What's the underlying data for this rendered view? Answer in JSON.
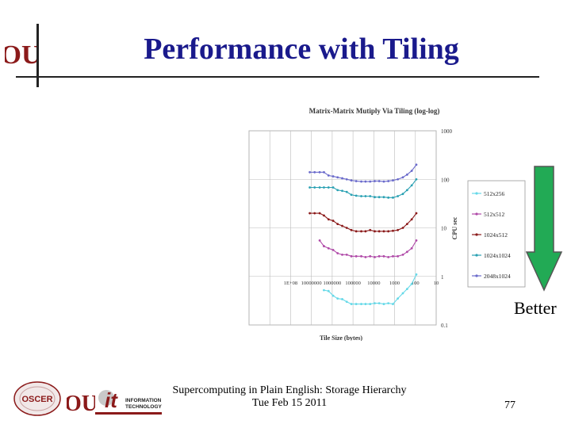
{
  "slide": {
    "title": "Performance with Tiling",
    "better_label": "Better",
    "footer_line1": "Supercomputing in Plain English: Storage Hierarchy",
    "footer_line2": "Tue Feb 15 2011",
    "page_number": "77"
  },
  "logos": {
    "ou": "OU",
    "oscer": "OSCER",
    "it": "it",
    "it_text1": "INFORMATION",
    "it_text2": "TECHNOLOGY"
  },
  "colors": {
    "title": "#1a1a8c",
    "arrow_fill": "#22aa55",
    "ou_crimson": "#8b1a1a"
  },
  "chart_data": {
    "type": "line",
    "title": "Matrix-Matrix Mutiply Via Tiling (log-log)",
    "xlabel": "Tile Size (bytes)",
    "ylabel": "CPU sec",
    "x_scale": "log",
    "y_scale": "log",
    "x_reversed": true,
    "xlim": [
      10,
      10000000000
    ],
    "ylim": [
      0.1,
      1000
    ],
    "x_ticks": [
      "1E+08",
      "10000000",
      "1000000",
      "100000",
      "10000",
      "1000",
      "100",
      "10"
    ],
    "y_ticks": [
      "1000",
      "100",
      "10",
      "1",
      "0.1"
    ],
    "grid": true,
    "legend_position": "right",
    "x": [
      20000000,
      12000000,
      7000000,
      4000000,
      2500000,
      1500000,
      900000,
      550000,
      330000,
      200000,
      120000,
      70000,
      40000,
      25000,
      15000,
      9000,
      5500,
      3300,
      2000,
      1200,
      700,
      400,
      250,
      150,
      90
    ],
    "series": [
      {
        "name": "512x256",
        "color": "#66d9e8",
        "values": [
          null,
          null,
          null,
          null,
          0.52,
          0.5,
          0.4,
          0.35,
          0.34,
          0.3,
          0.27,
          0.27,
          0.27,
          0.27,
          0.27,
          0.28,
          0.28,
          0.27,
          0.28,
          0.27,
          0.35,
          0.45,
          0.55,
          0.7,
          1.1
        ]
      },
      {
        "name": "512x512",
        "color": "#b04aa8",
        "values": [
          null,
          null,
          null,
          5.5,
          4.2,
          3.8,
          3.5,
          3.0,
          2.8,
          2.8,
          2.6,
          2.6,
          2.6,
          2.5,
          2.6,
          2.5,
          2.6,
          2.6,
          2.5,
          2.6,
          2.6,
          2.8,
          3.2,
          3.8,
          5.5
        ]
      },
      {
        "name": "1024x512",
        "color": "#8b1a1a",
        "values": [
          null,
          20,
          20,
          20,
          18,
          15,
          14,
          12,
          11,
          10,
          9,
          8.5,
          8.5,
          8.5,
          9,
          8.5,
          8.5,
          8.5,
          8.5,
          8.7,
          9,
          10,
          12,
          15,
          20
        ]
      },
      {
        "name": "1024x1024",
        "color": "#2aa1b3",
        "values": [
          null,
          68,
          68,
          68,
          68,
          68,
          68,
          60,
          58,
          55,
          48,
          46,
          45,
          45,
          45,
          43,
          43,
          43,
          42,
          42,
          45,
          50,
          60,
          75,
          100
        ]
      },
      {
        "name": "2048x1024",
        "color": "#6a6acb",
        "values": [
          null,
          140,
          140,
          140,
          140,
          120,
          115,
          110,
          105,
          100,
          95,
          92,
          90,
          90,
          90,
          92,
          92,
          90,
          92,
          95,
          100,
          110,
          125,
          150,
          200
        ]
      }
    ]
  }
}
